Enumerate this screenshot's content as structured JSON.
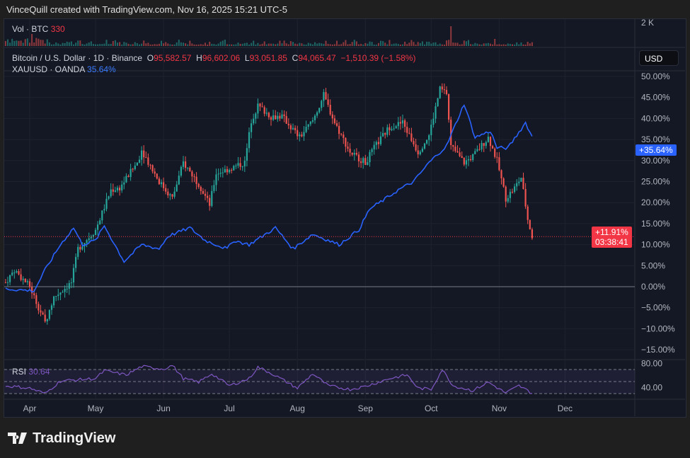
{
  "header": {
    "title": "VinceQuill created with TradingView.com, Nov 16, 2025 15:21 UTC-5"
  },
  "legend": {
    "vol_label": "Vol · BTC",
    "vol_value": "330",
    "main_label": "Bitcoin / U.S. Dollar · 1D · Binance",
    "o_label": "O",
    "o": "95,582.57",
    "h_label": "H",
    "h": "96,602.06",
    "l_label": "L",
    "l": "93,051.85",
    "c_label": "C",
    "c": "94,065.47",
    "change": "−1,510.39 (−1.58%)",
    "compare_label": "XAUUSD · OANDA",
    "compare_value": "35.64%",
    "rsi_label": "RSI",
    "rsi_value": "30.64"
  },
  "price_axis": {
    "currency": "USD",
    "vol_tick": "2 K",
    "ticks": [
      "50.00%",
      "45.00%",
      "40.00%",
      "35.00%",
      "30.00%",
      "25.00%",
      "20.00%",
      "15.00%",
      "10.00%",
      "5.00%",
      "0.00%",
      "−5.00%",
      "−10.00%",
      "−15.00%"
    ],
    "gold_tag": "+35.64%",
    "btc_tag": "+11.91%",
    "countdown": "03:38:41",
    "rsi_ticks": [
      "80.00",
      "40.00"
    ]
  },
  "time_axis": [
    "Apr",
    "May",
    "Jun",
    "Jul",
    "Aug",
    "Sep",
    "Oct",
    "Nov",
    "Dec"
  ],
  "colors": {
    "up": "#26a69a",
    "down": "#ef5350",
    "gold_line": "#2962ff",
    "rsi": "#7e57c2",
    "background": "#141824"
  },
  "footer": {
    "brand": "TradingView"
  },
  "chart_data": {
    "type": "candlestick+line",
    "y_unit": "percent change",
    "ylim": [
      -17,
      52
    ],
    "btc_close_keypoints": [
      [
        "2025-03-21",
        1
      ],
      [
        "2025-03-25",
        4
      ],
      [
        "2025-04-01",
        0
      ],
      [
        "2025-04-08",
        -8.5
      ],
      [
        "2025-04-12",
        -2.5
      ],
      [
        "2025-04-20",
        1
      ],
      [
        "2025-04-23",
        9
      ],
      [
        "2025-05-01",
        13.5
      ],
      [
        "2025-05-08",
        23
      ],
      [
        "2025-05-12",
        23.5
      ],
      [
        "2025-05-20",
        29.5
      ],
      [
        "2025-05-22",
        32.5
      ],
      [
        "2025-05-30",
        25
      ],
      [
        "2025-06-05",
        21
      ],
      [
        "2025-06-10",
        29.5
      ],
      [
        "2025-06-17",
        24.5
      ],
      [
        "2025-06-22",
        19.5
      ],
      [
        "2025-06-25",
        27
      ],
      [
        "2025-07-01",
        28
      ],
      [
        "2025-07-08",
        29.5
      ],
      [
        "2025-07-11",
        39.5
      ],
      [
        "2025-07-14",
        43
      ],
      [
        "2025-07-20",
        40.5
      ],
      [
        "2025-07-25",
        40.5
      ],
      [
        "2025-08-02",
        35.5
      ],
      [
        "2025-08-08",
        39.5
      ],
      [
        "2025-08-13",
        45.5
      ],
      [
        "2025-08-18",
        39
      ],
      [
        "2025-08-25",
        32
      ],
      [
        "2025-09-01",
        29.5
      ],
      [
        "2025-09-05",
        33
      ],
      [
        "2025-09-12",
        38
      ],
      [
        "2025-09-18",
        39
      ],
      [
        "2025-09-25",
        32
      ],
      [
        "2025-09-30",
        36
      ],
      [
        "2025-10-05",
        47
      ],
      [
        "2025-10-08",
        46
      ],
      [
        "2025-10-10",
        33.5
      ],
      [
        "2025-10-16",
        29.5
      ],
      [
        "2025-10-20",
        31
      ],
      [
        "2025-10-27",
        35.5
      ],
      [
        "2025-10-31",
        30
      ],
      [
        "2025-11-04",
        21
      ],
      [
        "2025-11-08",
        23.5
      ],
      [
        "2025-11-11",
        26
      ],
      [
        "2025-11-14",
        16
      ],
      [
        "2025-11-16",
        11.91
      ]
    ],
    "gold_keypoints": [
      [
        "2025-03-21",
        -0.5
      ],
      [
        "2025-04-03",
        -1
      ],
      [
        "2025-04-08",
        4
      ],
      [
        "2025-04-15",
        10
      ],
      [
        "2025-04-21",
        14
      ],
      [
        "2025-04-25",
        10
      ],
      [
        "2025-05-01",
        11
      ],
      [
        "2025-05-05",
        14.5
      ],
      [
        "2025-05-14",
        6
      ],
      [
        "2025-05-22",
        10
      ],
      [
        "2025-05-30",
        9
      ],
      [
        "2025-06-03",
        12
      ],
      [
        "2025-06-13",
        14
      ],
      [
        "2025-06-20",
        11
      ],
      [
        "2025-06-30",
        9
      ],
      [
        "2025-07-03",
        11
      ],
      [
        "2025-07-10",
        10
      ],
      [
        "2025-07-22",
        14
      ],
      [
        "2025-07-30",
        9
      ],
      [
        "2025-08-08",
        12.5
      ],
      [
        "2025-08-20",
        10
      ],
      [
        "2025-08-29",
        13.5
      ],
      [
        "2025-09-03",
        18.5
      ],
      [
        "2025-09-09",
        20.5
      ],
      [
        "2025-09-16",
        23
      ],
      [
        "2025-09-23",
        25
      ],
      [
        "2025-09-30",
        29.5
      ],
      [
        "2025-10-08",
        33.5
      ],
      [
        "2025-10-16",
        43.5
      ],
      [
        "2025-10-21",
        35.5
      ],
      [
        "2025-10-28",
        37
      ],
      [
        "2025-10-31",
        33
      ],
      [
        "2025-11-05",
        33
      ],
      [
        "2025-11-13",
        39
      ],
      [
        "2025-11-16",
        35.64
      ]
    ],
    "rsi_keypoints": [
      [
        "2025-03-21",
        43
      ],
      [
        "2025-04-01",
        39
      ],
      [
        "2025-04-08",
        30
      ],
      [
        "2025-04-15",
        51
      ],
      [
        "2025-05-01",
        55
      ],
      [
        "2025-05-05",
        68
      ],
      [
        "2025-05-15",
        61
      ],
      [
        "2025-05-22",
        75
      ],
      [
        "2025-06-01",
        71
      ],
      [
        "2025-06-05",
        77
      ],
      [
        "2025-06-10",
        55
      ],
      [
        "2025-06-17",
        49
      ],
      [
        "2025-06-23",
        63
      ],
      [
        "2025-07-01",
        43
      ],
      [
        "2025-07-10",
        55
      ],
      [
        "2025-07-14",
        74
      ],
      [
        "2025-07-20",
        64
      ],
      [
        "2025-08-01",
        39
      ],
      [
        "2025-08-08",
        63
      ],
      [
        "2025-08-15",
        43
      ],
      [
        "2025-08-25",
        37
      ],
      [
        "2025-09-01",
        42
      ],
      [
        "2025-09-12",
        55
      ],
      [
        "2025-09-20",
        61
      ],
      [
        "2025-09-25",
        39
      ],
      [
        "2025-10-01",
        37
      ],
      [
        "2025-10-06",
        70
      ],
      [
        "2025-10-11",
        43
      ],
      [
        "2025-10-20",
        35
      ],
      [
        "2025-10-27",
        49
      ],
      [
        "2025-11-04",
        31
      ],
      [
        "2025-11-10",
        43
      ],
      [
        "2025-11-16",
        30.64
      ]
    ],
    "rsi_bands": [
      70,
      50,
      30
    ],
    "volume_peak_date": "2025-10-10"
  }
}
